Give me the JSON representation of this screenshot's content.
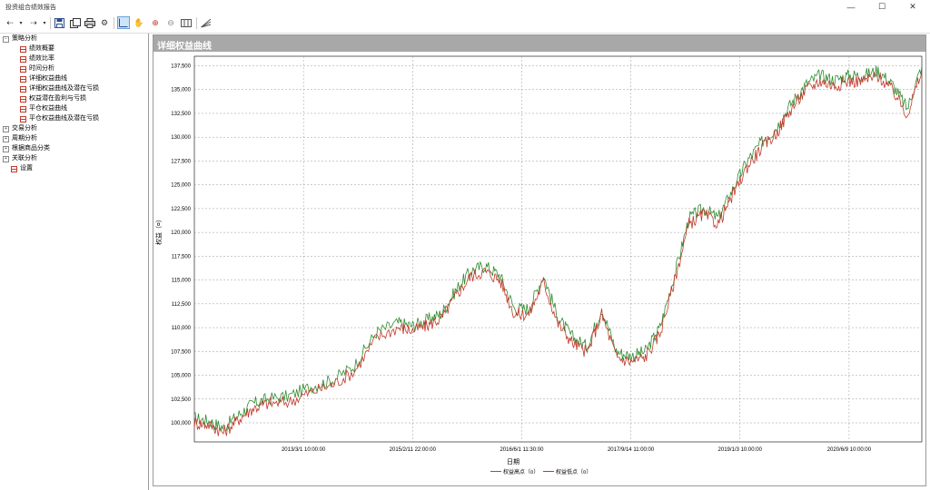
{
  "window": {
    "title": "投资组合绩效报告"
  },
  "panel": {
    "title": "详细权益曲线"
  },
  "sidebar": {
    "items": [
      {
        "label": "策略分析",
        "level": 0,
        "type": "expanded"
      },
      {
        "label": "绩效概要",
        "level": 1,
        "type": "leaf"
      },
      {
        "label": "绩效比率",
        "level": 1,
        "type": "leaf"
      },
      {
        "label": "时间分析",
        "level": 1,
        "type": "leaf"
      },
      {
        "label": "详细权益曲线",
        "level": 1,
        "type": "leaf"
      },
      {
        "label": "详细权益曲线及潜在亏损",
        "level": 1,
        "type": "leaf"
      },
      {
        "label": "权益潜在盈利与亏损",
        "level": 1,
        "type": "leaf"
      },
      {
        "label": "平仓权益曲线",
        "level": 1,
        "type": "leaf"
      },
      {
        "label": "平仓权益曲线及潜在亏损",
        "level": 1,
        "type": "leaf"
      },
      {
        "label": "交易分析",
        "level": 0,
        "type": "collapsed"
      },
      {
        "label": "周期分析",
        "level": 0,
        "type": "collapsed"
      },
      {
        "label": "根据商品分类",
        "level": 0,
        "type": "collapsed"
      },
      {
        "label": "关联分析",
        "level": 0,
        "type": "collapsed"
      },
      {
        "label": "设置",
        "level": 1,
        "type": "leaf"
      }
    ]
  },
  "chart_data": {
    "type": "line",
    "xlabel": "日期",
    "ylabel": "权益（¤）",
    "ylim": [
      98000,
      138500
    ],
    "yticks": [
      "100,000",
      "102,500",
      "105,000",
      "107,500",
      "110,000",
      "112,500",
      "115,000",
      "117,500",
      "120,000",
      "122,500",
      "125,000",
      "127,500",
      "130,000",
      "132,500",
      "135,000",
      "137,500"
    ],
    "ytick_values": [
      100000,
      102500,
      105000,
      107500,
      110000,
      112500,
      115000,
      117500,
      120000,
      122500,
      125000,
      127500,
      130000,
      132500,
      135000,
      137500
    ],
    "xticks": [
      "2013/3/1 10:00:00",
      "2015/2/11 22:00:00",
      "2016/6/1 11:30:00",
      "2017/9/14 11:00:00",
      "2019/1/3 10:00:00",
      "2020/6/9 10:00:00"
    ],
    "x": [
      0,
      0.02,
      0.04,
      0.06,
      0.08,
      0.1,
      0.13,
      0.16,
      0.19,
      0.22,
      0.25,
      0.28,
      0.3,
      0.32,
      0.34,
      0.36,
      0.38,
      0.4,
      0.42,
      0.44,
      0.46,
      0.48,
      0.5,
      0.52,
      0.54,
      0.56,
      0.58,
      0.6,
      0.62,
      0.64,
      0.66,
      0.68,
      0.7,
      0.72,
      0.74,
      0.76,
      0.78,
      0.8,
      0.82,
      0.84,
      0.86,
      0.88,
      0.9,
      0.92,
      0.94,
      0.96,
      0.98,
      1.0
    ],
    "series": [
      {
        "name": "权益高点（¤）",
        "color": "#2e8b2e",
        "values": [
          100500,
          100200,
          99500,
          100800,
          102000,
          102500,
          102800,
          103800,
          104500,
          106000,
          109500,
          110500,
          110200,
          110800,
          111500,
          114000,
          116000,
          116500,
          115500,
          112000,
          112000,
          115500,
          111000,
          109000,
          108000,
          112000,
          107500,
          107000,
          107500,
          110000,
          115500,
          121500,
          122500,
          121500,
          124500,
          127500,
          129500,
          131000,
          133500,
          135500,
          136500,
          136000,
          136500,
          136500,
          137000,
          135500,
          133000,
          137500
        ]
      },
      {
        "name": "权益低点（¤）",
        "color": "#c0392b",
        "values": [
          100000,
          99800,
          99000,
          100300,
          101500,
          102000,
          102200,
          103200,
          104000,
          105400,
          108900,
          110000,
          109700,
          110200,
          111000,
          113400,
          115400,
          115900,
          115000,
          111400,
          111400,
          114800,
          110400,
          108400,
          107400,
          111400,
          106900,
          106400,
          106900,
          109400,
          114900,
          120900,
          121900,
          120900,
          123900,
          126900,
          128900,
          130400,
          132900,
          134900,
          135900,
          135400,
          135900,
          135900,
          136400,
          134900,
          132400,
          136900
        ]
      }
    ]
  }
}
